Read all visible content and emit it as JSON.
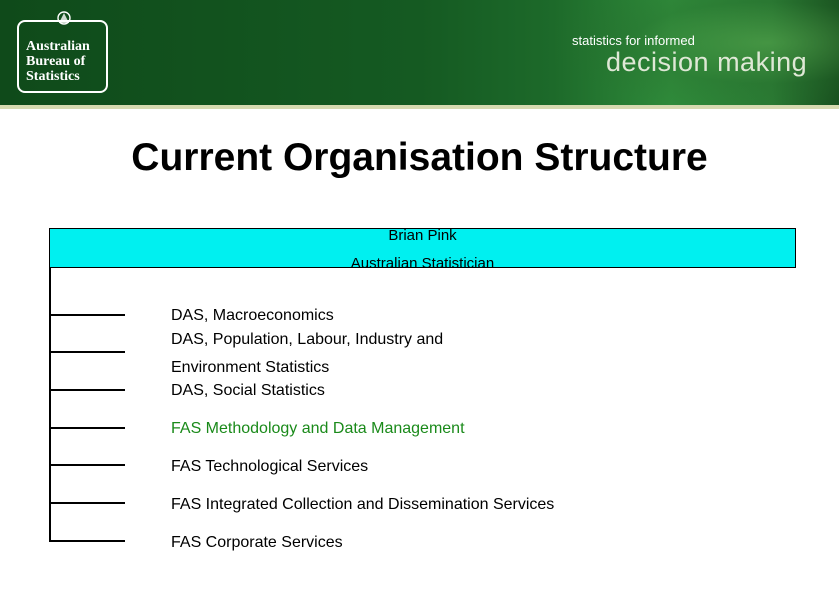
{
  "header": {
    "logo": {
      "line1": "Australian",
      "line2": "Bureau of",
      "line3": "Statistics"
    },
    "tagline_small": "statistics for informed",
    "tagline_large": "decision making",
    "colors": {
      "background": "#155a22",
      "accent_strip": "#d6d9b0"
    }
  },
  "slide": {
    "title": "Current Organisation Structure"
  },
  "org": {
    "head": {
      "name": "Brian Pink",
      "role": "Australian Statistician",
      "fill": "#00f0f0"
    },
    "items": [
      {
        "label": "DAS, Macroeconomics"
      },
      {
        "label": "DAS, Population, Labour, Industry and"
      },
      {
        "label": "Environment Statistics"
      },
      {
        "label": "DAS, Social Statistics"
      },
      {
        "label": "FAS Methodology and Data Management",
        "color": "#1a8a1a"
      },
      {
        "label": "FAS Technological Services"
      },
      {
        "label": "FAS Integrated Collection and Dissemination Services"
      },
      {
        "label": "FAS Corporate Services"
      }
    ]
  }
}
